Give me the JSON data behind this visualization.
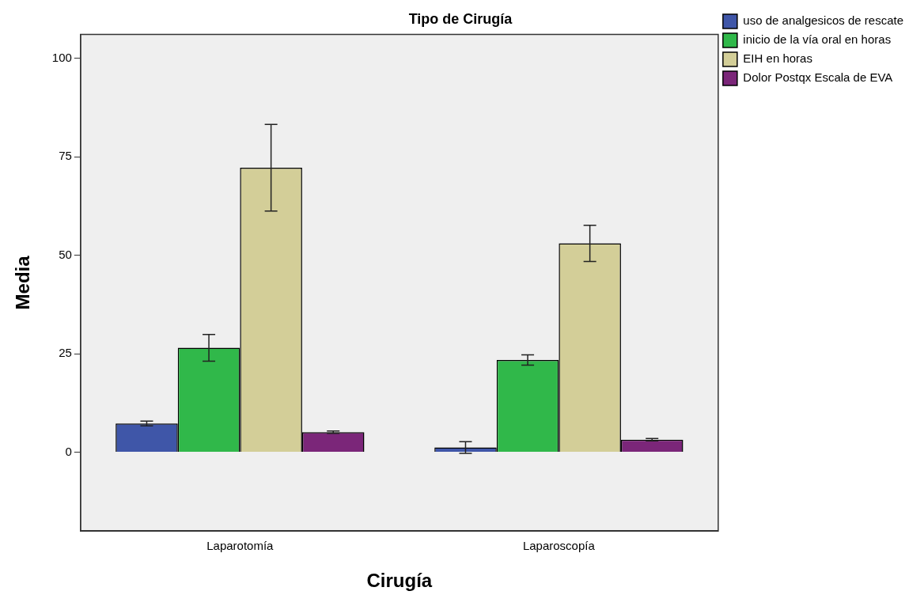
{
  "chart_data": {
    "type": "bar",
    "title": "Tipo de Cirugía",
    "xlabel": "Cirugía",
    "ylabel": "Media",
    "categories": [
      "Laparotomía",
      "Laparoscopía"
    ],
    "series": [
      {
        "name": "uso de analgesicos de rescate",
        "color": "#3f56a8",
        "values": [
          7.3,
          1.2
        ],
        "errors": [
          0.6,
          1.5
        ]
      },
      {
        "name": "inicio de la vía oral en horas",
        "color": "#30b84a",
        "values": [
          26.5,
          23.4
        ],
        "errors": [
          3.4,
          1.3
        ]
      },
      {
        "name": "EIH en horas",
        "color": "#d3ce98",
        "values": [
          72.2,
          53.0
        ],
        "errors": [
          11,
          4.6
        ]
      },
      {
        "name": "Dolor Postqx Escala de EVA",
        "color": "#7b2679",
        "values": [
          5.1,
          3.2
        ],
        "errors": [
          0.3,
          0.3
        ]
      }
    ],
    "ylim": [
      -20,
      106
    ],
    "yticks": [
      0,
      25,
      50,
      75,
      100
    ],
    "grid": false,
    "legend": "top right"
  }
}
